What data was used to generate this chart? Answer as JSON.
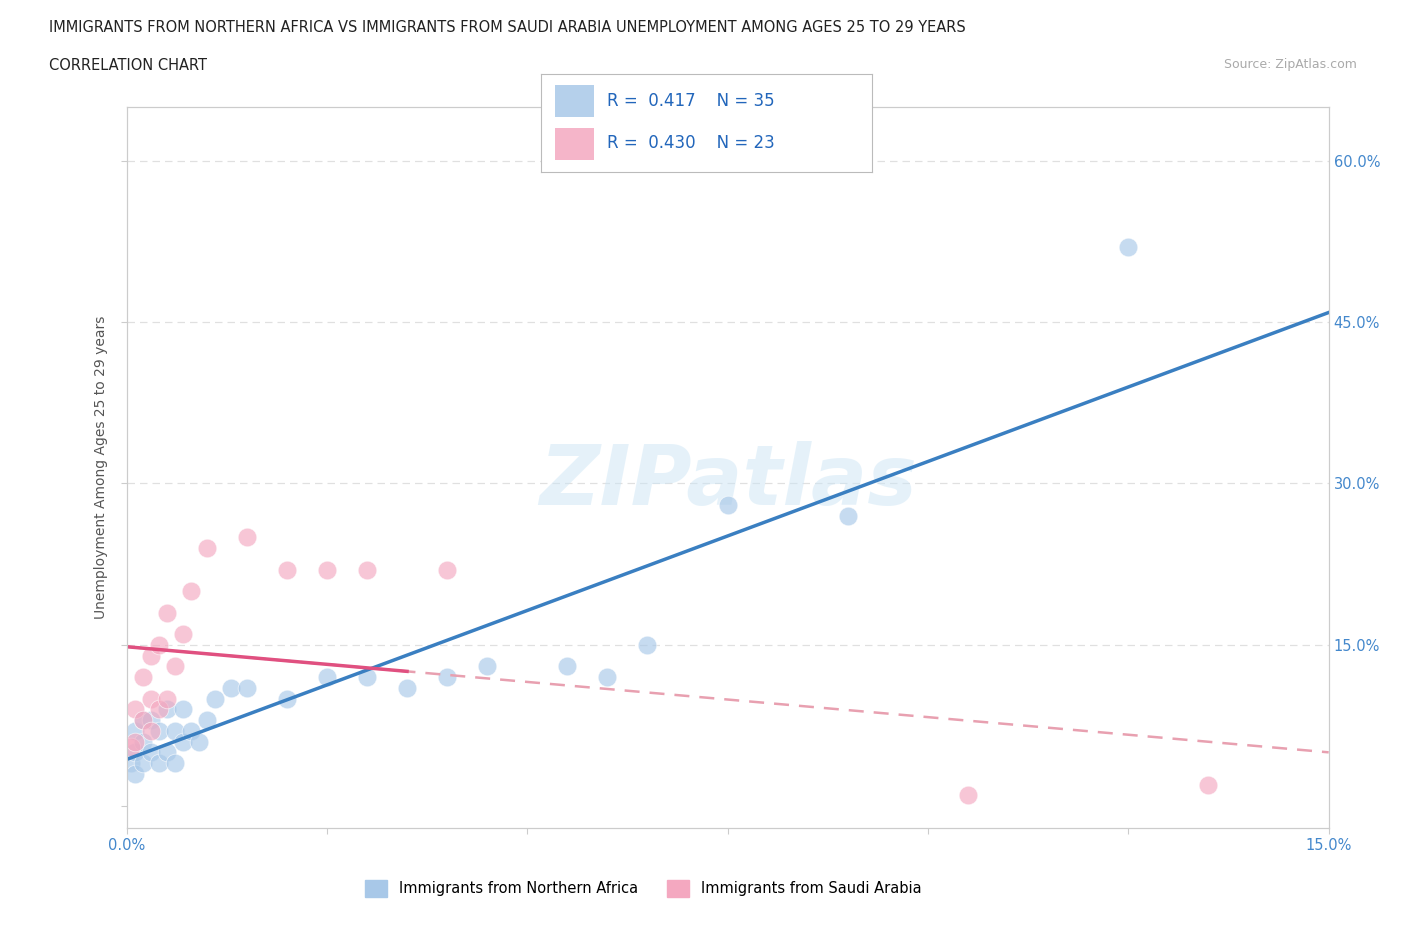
{
  "title_line1": "IMMIGRANTS FROM NORTHERN AFRICA VS IMMIGRANTS FROM SAUDI ARABIA UNEMPLOYMENT AMONG AGES 25 TO 29 YEARS",
  "title_line2": "CORRELATION CHART",
  "source": "Source: ZipAtlas.com",
  "ylabel": "Unemployment Among Ages 25 to 29 years",
  "xlim": [
    0.0,
    0.15
  ],
  "ylim": [
    -0.02,
    0.65
  ],
  "xticks": [
    0.0,
    0.025,
    0.05,
    0.075,
    0.1,
    0.125,
    0.15
  ],
  "xtick_labels": [
    "0.0%",
    "",
    "",
    "",
    "",
    "",
    "15.0%"
  ],
  "yticks": [
    0.0,
    0.15,
    0.3,
    0.45,
    0.6
  ],
  "ytick_labels_right": [
    "",
    "15.0%",
    "30.0%",
    "45.0%",
    "60.0%"
  ],
  "series1_color": "#a8c8e8",
  "series2_color": "#f4a8c0",
  "series1_label": "Immigrants from Northern Africa",
  "series2_label": "Immigrants from Saudi Arabia",
  "series1_R": "0.417",
  "series1_N": "35",
  "series2_R": "0.430",
  "series2_N": "23",
  "watermark": "ZIPatlas",
  "series1_x": [
    0.0005,
    0.001,
    0.001,
    0.001,
    0.002,
    0.002,
    0.002,
    0.003,
    0.003,
    0.004,
    0.004,
    0.005,
    0.005,
    0.006,
    0.006,
    0.007,
    0.007,
    0.008,
    0.009,
    0.01,
    0.011,
    0.013,
    0.015,
    0.02,
    0.025,
    0.03,
    0.035,
    0.04,
    0.045,
    0.055,
    0.06,
    0.065,
    0.075,
    0.09,
    0.125
  ],
  "series1_y": [
    0.04,
    0.03,
    0.05,
    0.07,
    0.04,
    0.06,
    0.08,
    0.05,
    0.08,
    0.04,
    0.07,
    0.05,
    0.09,
    0.04,
    0.07,
    0.06,
    0.09,
    0.07,
    0.06,
    0.08,
    0.1,
    0.11,
    0.11,
    0.1,
    0.12,
    0.12,
    0.11,
    0.12,
    0.13,
    0.13,
    0.12,
    0.15,
    0.28,
    0.27,
    0.52
  ],
  "series2_x": [
    0.0005,
    0.001,
    0.001,
    0.002,
    0.002,
    0.003,
    0.003,
    0.003,
    0.004,
    0.004,
    0.005,
    0.005,
    0.006,
    0.007,
    0.008,
    0.01,
    0.015,
    0.02,
    0.025,
    0.03,
    0.04,
    0.105,
    0.135
  ],
  "series2_y": [
    0.055,
    0.06,
    0.09,
    0.08,
    0.12,
    0.07,
    0.1,
    0.14,
    0.09,
    0.15,
    0.1,
    0.18,
    0.13,
    0.16,
    0.2,
    0.24,
    0.25,
    0.22,
    0.22,
    0.22,
    0.22,
    0.01,
    0.02
  ],
  "grid_color": "#e0e0e0",
  "background_color": "#ffffff",
  "reg_line1_color": "#3a7fc1",
  "reg_line2_solid_color": "#e05080",
  "reg_line2_dash_color": "#e8a0b0"
}
